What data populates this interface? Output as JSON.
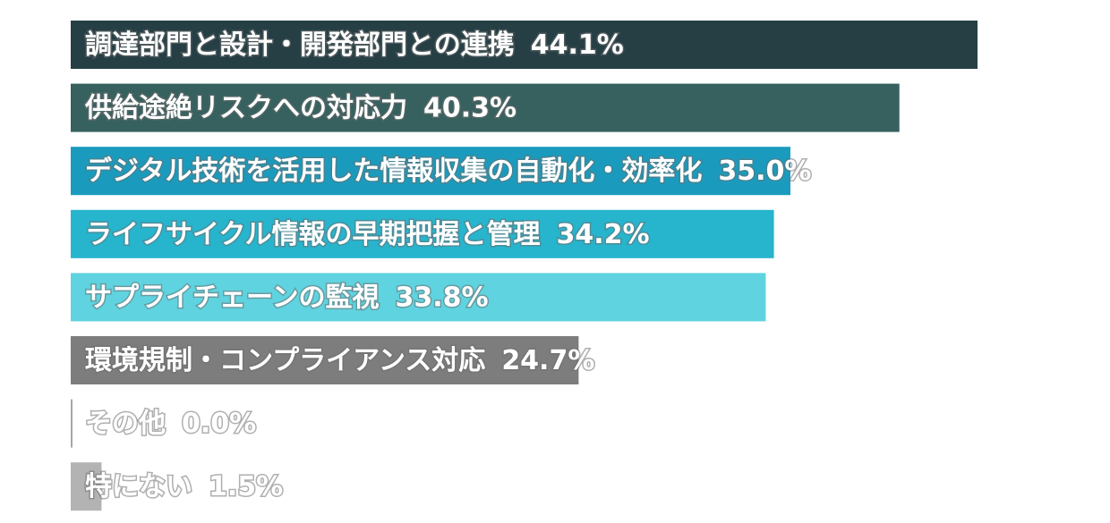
{
  "chart_data": {
    "type": "bar",
    "orientation": "horizontal",
    "categories": [
      "調達部門と設計・開発部門との連携",
      "供給途絶リスクへの対応力",
      "デジタル技術を活用した情報収集の自動化・効率化",
      "ライフサイクル情報の早期把握と管理",
      "サプライチェーンの監視",
      "環境規制・コンプライアンス対応",
      "その他",
      "特にない"
    ],
    "values": [
      44.1,
      40.3,
      35.0,
      34.2,
      33.8,
      24.7,
      0.0,
      1.5
    ],
    "value_labels": [
      "44.1%",
      "40.3%",
      "35.0%",
      "34.2%",
      "33.8%",
      "24.7%",
      "0.0%",
      "1.5%"
    ],
    "colors": [
      "#253f45",
      "#36615f",
      "#1a9bbd",
      "#27b4cd",
      "#5fd3df",
      "#7d7d7d",
      "#a6a6a6",
      "#b3b3b3"
    ],
    "unit": "%",
    "xlim": [
      0,
      44.1
    ],
    "grid": false,
    "legend": "none",
    "title": "",
    "xlabel": "",
    "ylabel": ""
  }
}
